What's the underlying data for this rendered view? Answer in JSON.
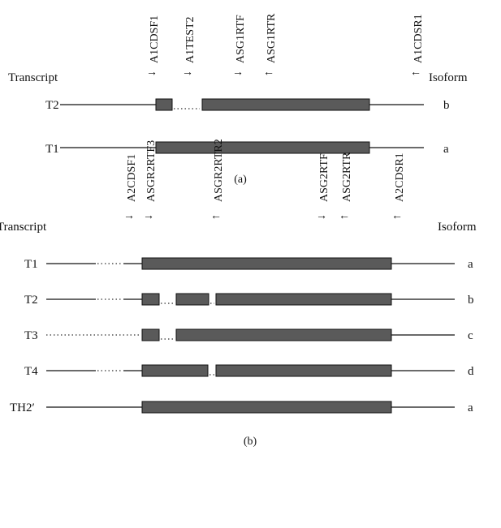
{
  "panel_a": {
    "caption": "(a)",
    "transcript_header": "Transcript",
    "isoform_header": "Isoform",
    "primers": [
      {
        "label": "A1CDSF1",
        "arrow": "→"
      },
      {
        "label": "A1TEST2",
        "arrow": "→"
      },
      {
        "label": "ASG1RTF",
        "arrow": "→"
      },
      {
        "label": "ASG1RTR",
        "arrow": "←"
      },
      {
        "label": "A1CDSR1",
        "arrow": "←"
      }
    ],
    "rows": [
      {
        "transcript": "T2",
        "isoform": "b"
      },
      {
        "transcript": "T1",
        "isoform": "a"
      }
    ]
  },
  "panel_b": {
    "caption": "(b)",
    "transcript_header": "Transcript",
    "isoform_header": "Isoform",
    "primers": [
      {
        "label": "A2CDSF1",
        "arrow": "→"
      },
      {
        "label": "ASGR2RTF3",
        "arrow": "→"
      },
      {
        "label": "ASGR2RTR2",
        "arrow": "←"
      },
      {
        "label": "ASG2RTF",
        "arrow": "→"
      },
      {
        "label": "ASG2RTR",
        "arrow": "←"
      },
      {
        "label": "A2CDSR1",
        "arrow": "←"
      }
    ],
    "rows": [
      {
        "transcript": "T1",
        "isoform": "a"
      },
      {
        "transcript": "T2",
        "isoform": "b"
      },
      {
        "transcript": "T3",
        "isoform": "c"
      },
      {
        "transcript": "T4",
        "isoform": "d"
      },
      {
        "transcript": "TH2′",
        "isoform": "a"
      }
    ]
  }
}
